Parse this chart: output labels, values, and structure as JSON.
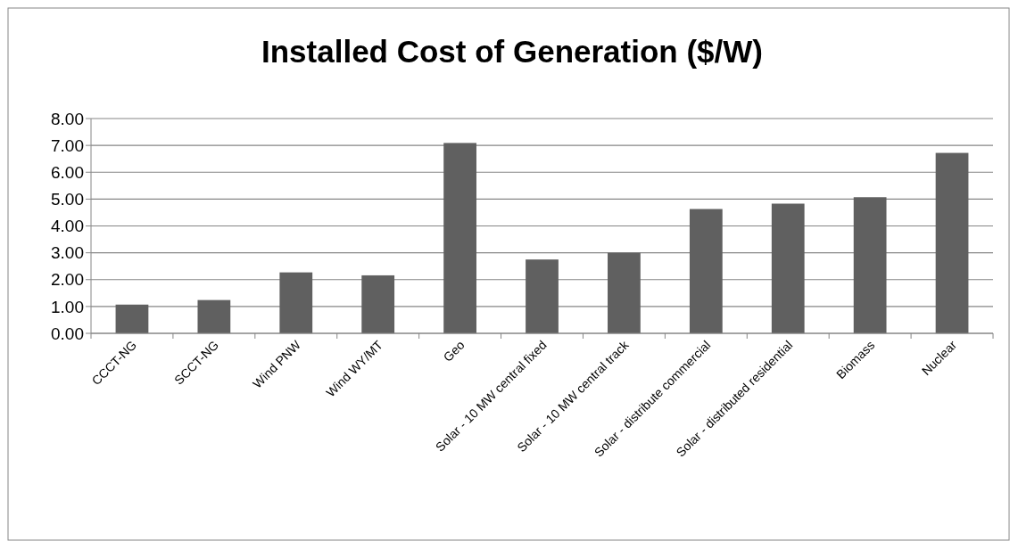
{
  "chart_data": {
    "type": "bar",
    "title": "Installed Cost of Generation ($/W)",
    "categories": [
      "CCCT-NG",
      "SCCT-NG",
      "Wind PNW",
      "Wind WY/MT",
      "Geo",
      "Solar - 10 MW central fixed",
      "Solar - 10 MW central track",
      "Solar - distribute commercial",
      "Solar - distributed residential",
      "Biomass",
      "Nuclear"
    ],
    "values": [
      1.07,
      1.24,
      2.27,
      2.16,
      7.09,
      2.75,
      3.0,
      4.63,
      4.83,
      5.07,
      6.72
    ],
    "color": "#606060",
    "ylim": [
      0,
      8
    ],
    "yticks": [
      {
        "value": 0,
        "label": "0.00"
      },
      {
        "value": 1,
        "label": "1.00"
      },
      {
        "value": 2,
        "label": "2.00"
      },
      {
        "value": 3,
        "label": "3.00"
      },
      {
        "value": 4,
        "label": "4.00"
      },
      {
        "value": 5,
        "label": "5.00"
      },
      {
        "value": 6,
        "label": "6.00"
      },
      {
        "value": 7,
        "label": "7.00"
      },
      {
        "value": 8,
        "label": "8.00"
      }
    ],
    "grid": "y"
  }
}
